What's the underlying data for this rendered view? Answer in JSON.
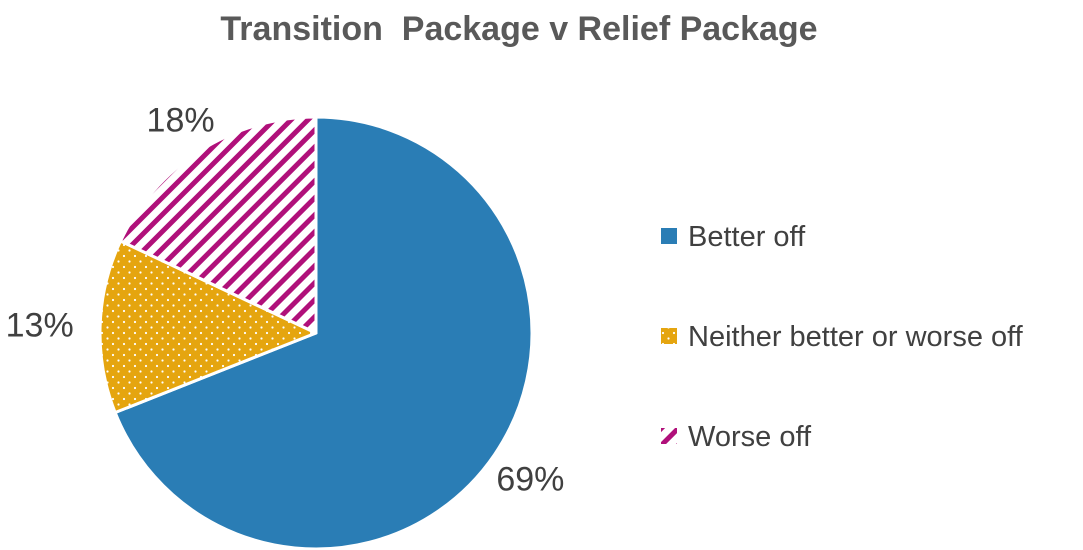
{
  "chart_data": {
    "type": "pie",
    "title": "Transition  Package v Relief Package",
    "categories": [
      "Better off",
      "Neither better or worse off",
      "Worse off"
    ],
    "values": [
      69,
      13,
      18
    ],
    "data_labels": [
      "69%",
      "13%",
      "18%"
    ],
    "colors": [
      "#2a7db5",
      "#e5a50f",
      "#b0107a"
    ],
    "fills": [
      "solid",
      "dotted",
      "diagonal-stripes"
    ],
    "legend_position": "right"
  }
}
